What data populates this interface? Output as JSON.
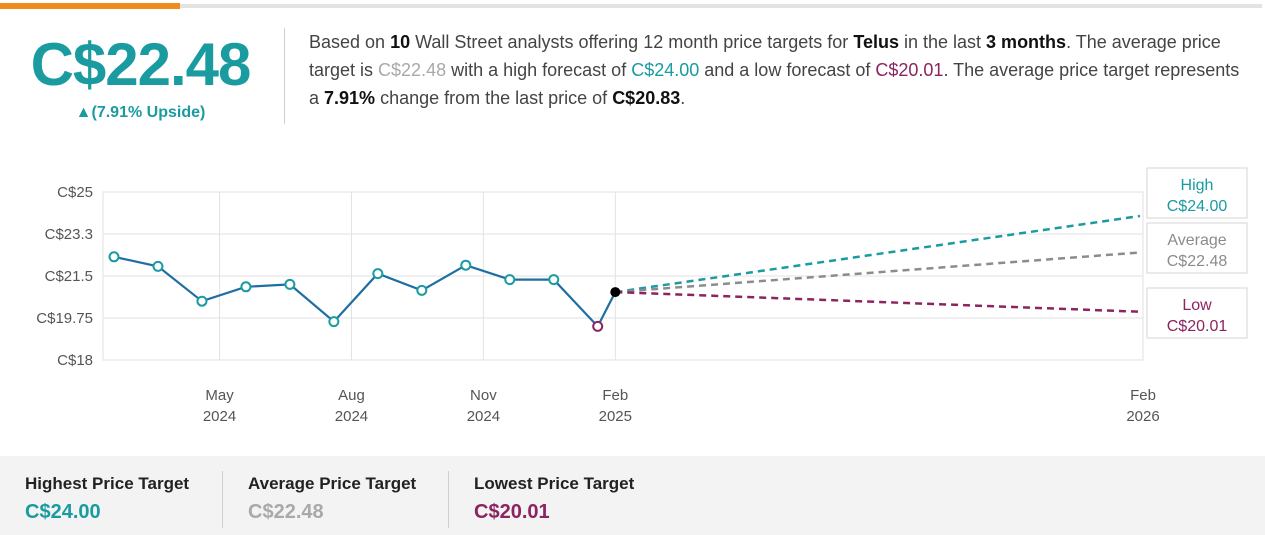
{
  "colors": {
    "accent": "#f08b1d",
    "teal": "#1a9ba0",
    "gray": "#a9a9a9",
    "maroon": "#8b2461",
    "line": "#1f6ea3"
  },
  "header": {
    "price": "C$22.48",
    "upside": "▲(7.91% Upside)"
  },
  "summary": {
    "p1": "Based on ",
    "num_analysts": "10",
    "p2": " Wall Street analysts offering 12 month price targets for ",
    "company": "Telus",
    "p3": " in the last ",
    "period": "3 months",
    "p4": ". The average price target is ",
    "avg": "C$22.48",
    "p5": " with a high forecast of ",
    "high": "C$24.00",
    "p6": " and a low forecast of ",
    "low": "C$20.01",
    "p7": ". The average price target represents a ",
    "change": "7.91%",
    "p8": " change from the last price of ",
    "last": "C$20.83",
    "p9": "."
  },
  "chart_data": {
    "type": "line",
    "y_ticks": [
      "C$25",
      "C$23.3",
      "C$21.5",
      "C$19.75",
      "C$18"
    ],
    "y_tick_values": [
      25,
      23.25,
      21.5,
      19.75,
      18
    ],
    "ylim": [
      18,
      25
    ],
    "x_ticks": [
      {
        "month": "May",
        "year": "2024",
        "t": 3
      },
      {
        "month": "Aug",
        "year": "2024",
        "t": 6
      },
      {
        "month": "Nov",
        "year": "2024",
        "t": 9
      },
      {
        "month": "Feb",
        "year": "2025",
        "t": 12
      },
      {
        "month": "Feb",
        "year": "2026",
        "t": 24
      }
    ],
    "xlim": [
      0.35,
      24
    ],
    "grid": true,
    "history": [
      {
        "t": 0.6,
        "y": 22.3
      },
      {
        "t": 1.6,
        "y": 21.9
      },
      {
        "t": 2.6,
        "y": 20.45
      },
      {
        "t": 3.6,
        "y": 21.05
      },
      {
        "t": 4.6,
        "y": 21.15
      },
      {
        "t": 5.6,
        "y": 19.6
      },
      {
        "t": 6.6,
        "y": 21.6
      },
      {
        "t": 7.6,
        "y": 20.9
      },
      {
        "t": 8.6,
        "y": 21.95
      },
      {
        "t": 9.6,
        "y": 21.35
      },
      {
        "t": 10.6,
        "y": 21.35
      },
      {
        "t": 11.6,
        "y": 19.4
      },
      {
        "t": 12,
        "y": 20.83
      }
    ],
    "forecast_start": {
      "t": 12,
      "y": 20.83
    },
    "forecasts": [
      {
        "name": "High",
        "value": 24.0,
        "label": "C$24.00",
        "color": "#1a9ba0"
      },
      {
        "name": "Average",
        "value": 22.48,
        "label": "C$22.48",
        "color": "#8c8c8c"
      },
      {
        "name": "Low",
        "value": 20.01,
        "label": "C$20.01",
        "color": "#8b2461"
      }
    ]
  },
  "stats": [
    {
      "label": "Highest Price Target",
      "value": "C$24.00",
      "color": "#1a9ba0"
    },
    {
      "label": "Average Price Target",
      "value": "C$22.48",
      "color": "#a9a9a9"
    },
    {
      "label": "Lowest Price Target",
      "value": "C$20.01",
      "color": "#8b2461"
    }
  ]
}
